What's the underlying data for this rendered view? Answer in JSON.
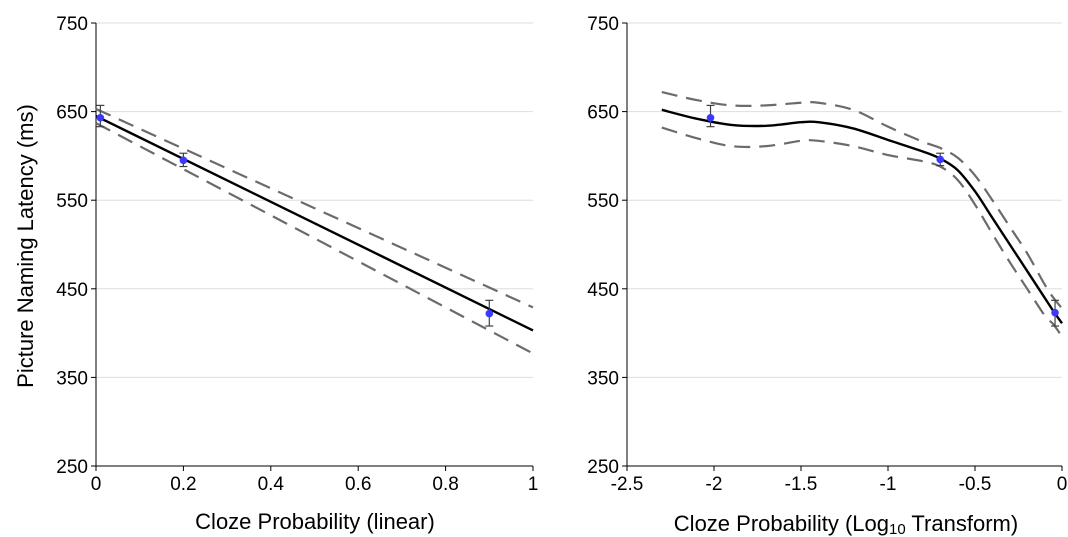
{
  "figure": {
    "ylabel": "Picture Naming Latency (ms)"
  },
  "colors": {
    "fit_line": "#000000",
    "ci_line": "#6b6b6b",
    "point": "#3a3aff",
    "error_bar": "#404040",
    "gridline": "#dedede",
    "axis": "#000000"
  },
  "chart_data": [
    {
      "type": "line",
      "xlabel": "Cloze Probability (linear)",
      "ylabel": "Picture Naming Latency (ms)",
      "xlim": [
        0,
        1
      ],
      "ylim": [
        250,
        750
      ],
      "x_ticks": [
        0,
        0.2,
        0.4,
        0.6,
        0.8,
        1
      ],
      "x_tick_labels": [
        "0",
        "0.2",
        "0.4",
        "0.6",
        "0.8",
        "1"
      ],
      "y_ticks": [
        250,
        350,
        450,
        550,
        650,
        750
      ],
      "y_tick_labels": [
        "250",
        "350",
        "450",
        "550",
        "650",
        "750"
      ],
      "grid": "horizontal",
      "series": [
        {
          "role": "fit",
          "style": "solid",
          "x": [
            0,
            1
          ],
          "y": [
            645,
            403
          ]
        },
        {
          "role": "ci_upper",
          "style": "dashed",
          "x": [
            0,
            1
          ],
          "y": [
            653,
            429
          ]
        },
        {
          "role": "ci_lower",
          "style": "dashed",
          "x": [
            0,
            1
          ],
          "y": [
            637,
            377
          ]
        }
      ],
      "points": [
        {
          "x": 0.01,
          "y": 643,
          "err_low": 633,
          "err_high": 657
        },
        {
          "x": 0.2,
          "y": 595,
          "err_low": 588,
          "err_high": 603
        },
        {
          "x": 0.9,
          "y": 422,
          "err_low": 408,
          "err_high": 437
        }
      ]
    },
    {
      "type": "line",
      "xlabel_parts": [
        "Cloze Probability (Log",
        "10",
        " Transform)"
      ],
      "ylabel": "",
      "xlim": [
        -2.5,
        0
      ],
      "ylim": [
        250,
        750
      ],
      "x_ticks": [
        -2.5,
        -2,
        -1.5,
        -1,
        -0.5,
        0
      ],
      "x_tick_labels": [
        "-2.5",
        "-2",
        "-1.5",
        "-1",
        "-0.5",
        "0"
      ],
      "y_ticks": [
        250,
        350,
        450,
        550,
        650,
        750
      ],
      "y_tick_labels": [
        "250",
        "350",
        "450",
        "550",
        "650",
        "750"
      ],
      "grid": "horizontal",
      "series": [
        {
          "role": "fit",
          "style": "solid",
          "x": [
            -2.3,
            -2.1,
            -1.9,
            -1.7,
            -1.5,
            -1.4,
            -1.2,
            -1.0,
            -0.8,
            -0.7,
            -0.6,
            -0.5,
            -0.4,
            -0.3,
            -0.2,
            -0.1,
            -0.05,
            0
          ],
          "y": [
            652,
            642,
            635,
            634,
            638,
            638,
            631,
            618,
            605,
            597,
            584,
            560,
            530,
            500,
            470,
            440,
            425,
            411
          ]
        },
        {
          "role": "ci_upper",
          "style": "dashed",
          "x": [
            -2.3,
            -2.1,
            -1.9,
            -1.7,
            -1.5,
            -1.4,
            -1.2,
            -1.0,
            -0.8,
            -0.7,
            -0.6,
            -0.5,
            -0.4,
            -0.3,
            -0.2,
            -0.1,
            -0.05,
            0
          ],
          "y": [
            672,
            663,
            657,
            657,
            660,
            660,
            652,
            633,
            616,
            609,
            598,
            578,
            550,
            520,
            490,
            455,
            440,
            428
          ]
        },
        {
          "role": "ci_lower",
          "style": "dashed",
          "x": [
            -2.3,
            -2.1,
            -1.9,
            -1.7,
            -1.5,
            -1.4,
            -1.2,
            -1.0,
            -0.8,
            -0.7,
            -0.6,
            -0.5,
            -0.4,
            -0.3,
            -0.2,
            -0.1,
            -0.05,
            0
          ],
          "y": [
            632,
            620,
            611,
            611,
            617,
            617,
            611,
            601,
            594,
            588,
            573,
            545,
            512,
            480,
            450,
            420,
            410,
            396
          ]
        }
      ],
      "points": [
        {
          "x": -2.02,
          "y": 643,
          "err_low": 633,
          "err_high": 657
        },
        {
          "x": -0.7,
          "y": 596,
          "err_low": 589,
          "err_high": 603
        },
        {
          "x": -0.04,
          "y": 423,
          "err_low": 408,
          "err_high": 437
        }
      ]
    }
  ]
}
